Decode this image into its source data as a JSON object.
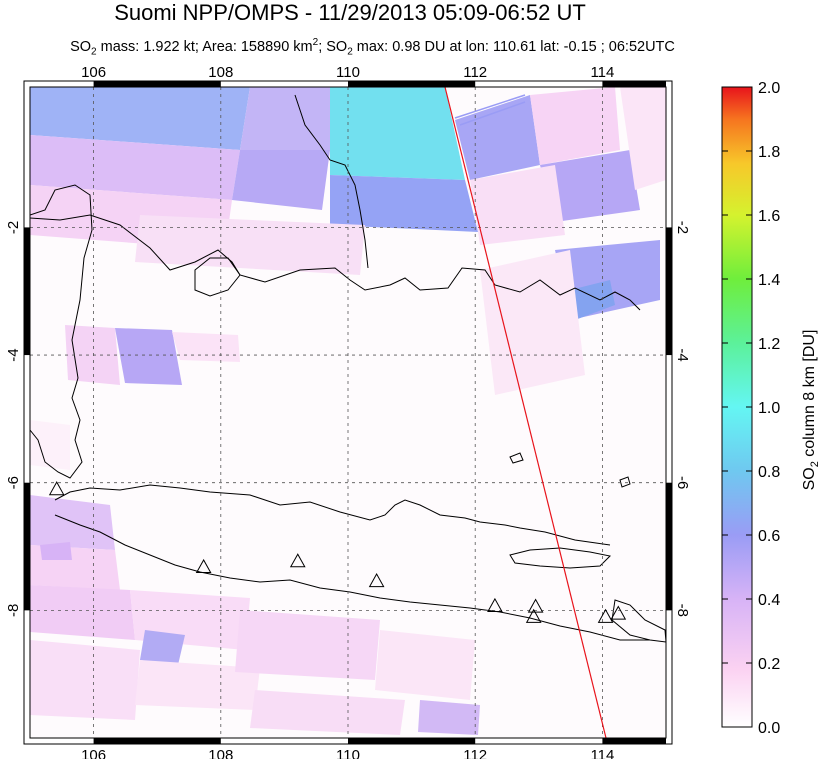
{
  "title": "Suomi NPP/OMPS - 11/29/2013 05:09-06:52 UT",
  "subtitle": {
    "so2_prefix": "SO",
    "so2_sub": "2",
    "mass_text": " mass: 1.922 kt; Area: 158890 km",
    "area_sup": "2",
    "so2_text": "; SO",
    "so2_sub2": "2",
    "max_text": " max: 0.98 DU at lon: 110.61 lat: -0.15 ; 06:52UTC"
  },
  "map": {
    "lon_range": [
      105,
      115
    ],
    "lat_range": [
      -10,
      0.2
    ],
    "lon_ticks": [
      106,
      108,
      110,
      112,
      114
    ],
    "lat_ticks": [
      -2,
      -4,
      -6,
      -8
    ],
    "lon_tick_labels": [
      "106",
      "108",
      "110",
      "112",
      "114"
    ],
    "lat_tick_labels": [
      "-2",
      "-4",
      "-6",
      "-8"
    ],
    "gridlines": true,
    "volcano_marker": "triangle-icon",
    "volcanoes": [
      {
        "lon": 105.42,
        "lat": -6.1
      },
      {
        "lon": 107.73,
        "lat": -7.32
      },
      {
        "lon": 109.21,
        "lat": -7.23
      },
      {
        "lon": 110.45,
        "lat": -7.54
      },
      {
        "lon": 112.31,
        "lat": -7.93
      },
      {
        "lon": 112.95,
        "lat": -7.94
      },
      {
        "lon": 112.92,
        "lat": -8.1
      },
      {
        "lon": 114.05,
        "lat": -8.1
      },
      {
        "lon": 114.25,
        "lat": -8.05
      }
    ],
    "orbit_line_color": "#e8141c"
  },
  "colorbar": {
    "label": "SO2 column 8 km [DU]",
    "label_prefix": "SO",
    "label_sub": "2",
    "label_suffix": " column 8 km [DU]",
    "min": 0.0,
    "max": 2.0,
    "tick_labels": [
      "0.0",
      "0.2",
      "0.4",
      "0.6",
      "0.8",
      "1.0",
      "1.2",
      "1.4",
      "1.6",
      "1.8",
      "2.0"
    ],
    "colors": [
      "#ffffff",
      "#fbd2f2",
      "#d7b3f6",
      "#9a9cf5",
      "#6fc8f0",
      "#64f6f3",
      "#5cf19a",
      "#6fee3c",
      "#d5f22e",
      "#f7c82a",
      "#f6741f",
      "#e8141c"
    ]
  }
}
